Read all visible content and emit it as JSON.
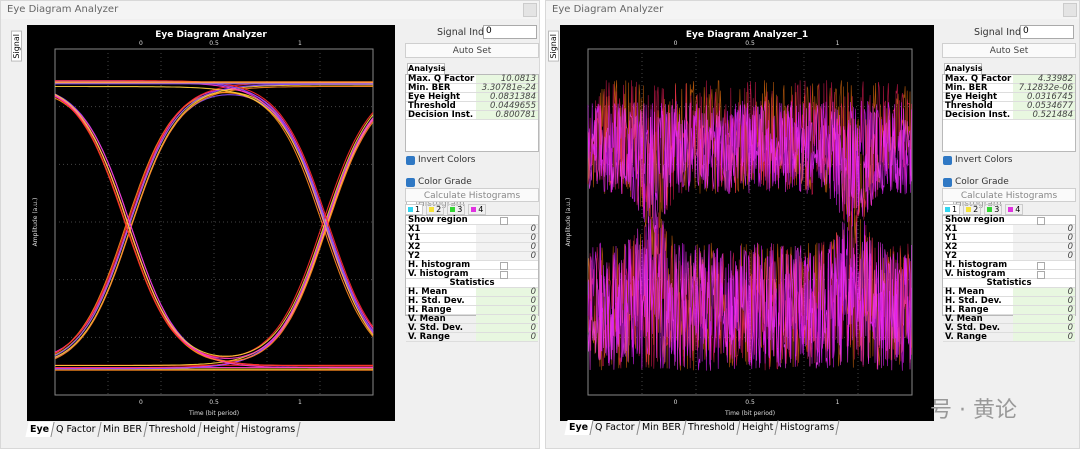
{
  "windows": [
    {
      "title": "Eye Diagram Analyzer",
      "side_tab": "Signal",
      "plot": {
        "title": "Eye Diagram Analyzer",
        "y_label": "Amplitude (a.u.)",
        "x_label": "Time (bit period)",
        "x_ticks": [
          "0",
          "0.5",
          "1"
        ]
      },
      "signal_index_label": "Signal Index:",
      "signal_index": "0",
      "auto_set": "Auto Set",
      "analysis_tab": "Analysis",
      "analysis": [
        [
          "Max. Q Factor",
          "10.0813"
        ],
        [
          "Min. BER",
          "3.30781e-24"
        ],
        [
          "Eye Height",
          "0.0831384"
        ],
        [
          "Threshold",
          "0.0449655"
        ],
        [
          "Decision Inst.",
          "0.800781"
        ]
      ],
      "checkboxes": [
        "Invert Colors",
        "Color Grade",
        "Histogram"
      ],
      "calc_button": "Calculate Histograms",
      "color_tabs": [
        "1",
        "2",
        "3",
        "4"
      ],
      "region": [
        {
          "label": "Show region"
        },
        {
          "label": "X1",
          "value": "0"
        },
        {
          "label": "Y1",
          "value": "0"
        },
        {
          "label": "X2",
          "value": "0"
        },
        {
          "label": "Y2",
          "value": "0"
        },
        {
          "label": "H. histogram"
        },
        {
          "label": "V. histogram"
        }
      ],
      "statistics_heading": "Statistics",
      "statistics": [
        [
          "H. Mean",
          "0"
        ],
        [
          "H. Std. Dev.",
          "0"
        ],
        [
          "H. Range",
          "0"
        ],
        [
          "V. Mean",
          "0"
        ],
        [
          "V. Std. Dev.",
          "0"
        ],
        [
          "V. Range",
          "0"
        ]
      ],
      "bottom_tabs": [
        "Eye",
        "Q Factor",
        "Min BER",
        "Threshold",
        "Height",
        "Histograms"
      ]
    },
    {
      "title": "Eye Diagram Analyzer",
      "side_tab": "Signal",
      "plot": {
        "title": "Eye Diagram Analyzer_1",
        "y_label": "Amplitude (a.u.)",
        "x_label": "Time (bit period)",
        "x_ticks": [
          "0",
          "0.5",
          "1"
        ]
      },
      "signal_index_label": "Signal Index:",
      "signal_index": "0",
      "auto_set": "Auto Set",
      "analysis_tab": "Analysis",
      "analysis": [
        [
          "Max. Q Factor",
          "4.33982"
        ],
        [
          "Min. BER",
          "7.12832e-06"
        ],
        [
          "Eye Height",
          "0.0316745"
        ],
        [
          "Threshold",
          "0.0534677"
        ],
        [
          "Decision Inst.",
          "0.521484"
        ]
      ],
      "checkboxes": [
        "Invert Colors",
        "Color Grade",
        "Histogram"
      ],
      "calc_button": "Calculate Histograms",
      "color_tabs": [
        "1",
        "2",
        "3",
        "4"
      ],
      "region": [
        {
          "label": "Show region"
        },
        {
          "label": "X1",
          "value": "0"
        },
        {
          "label": "Y1",
          "value": "0"
        },
        {
          "label": "X2",
          "value": "0"
        },
        {
          "label": "Y2",
          "value": "0"
        },
        {
          "label": "H. histogram"
        },
        {
          "label": "V. histogram"
        }
      ],
      "statistics_heading": "Statistics",
      "statistics": [
        [
          "H. Mean",
          "0"
        ],
        [
          "H. Std. Dev.",
          "0"
        ],
        [
          "H. Range",
          "0"
        ],
        [
          "V. Mean",
          "0"
        ],
        [
          "V. Std. Dev.",
          "0"
        ],
        [
          "V. Range",
          "0"
        ]
      ],
      "bottom_tabs": [
        "Eye",
        "Q Factor",
        "Min BER",
        "Threshold",
        "Height",
        "Histograms"
      ]
    }
  ],
  "watermark": "号 · 黄论"
}
